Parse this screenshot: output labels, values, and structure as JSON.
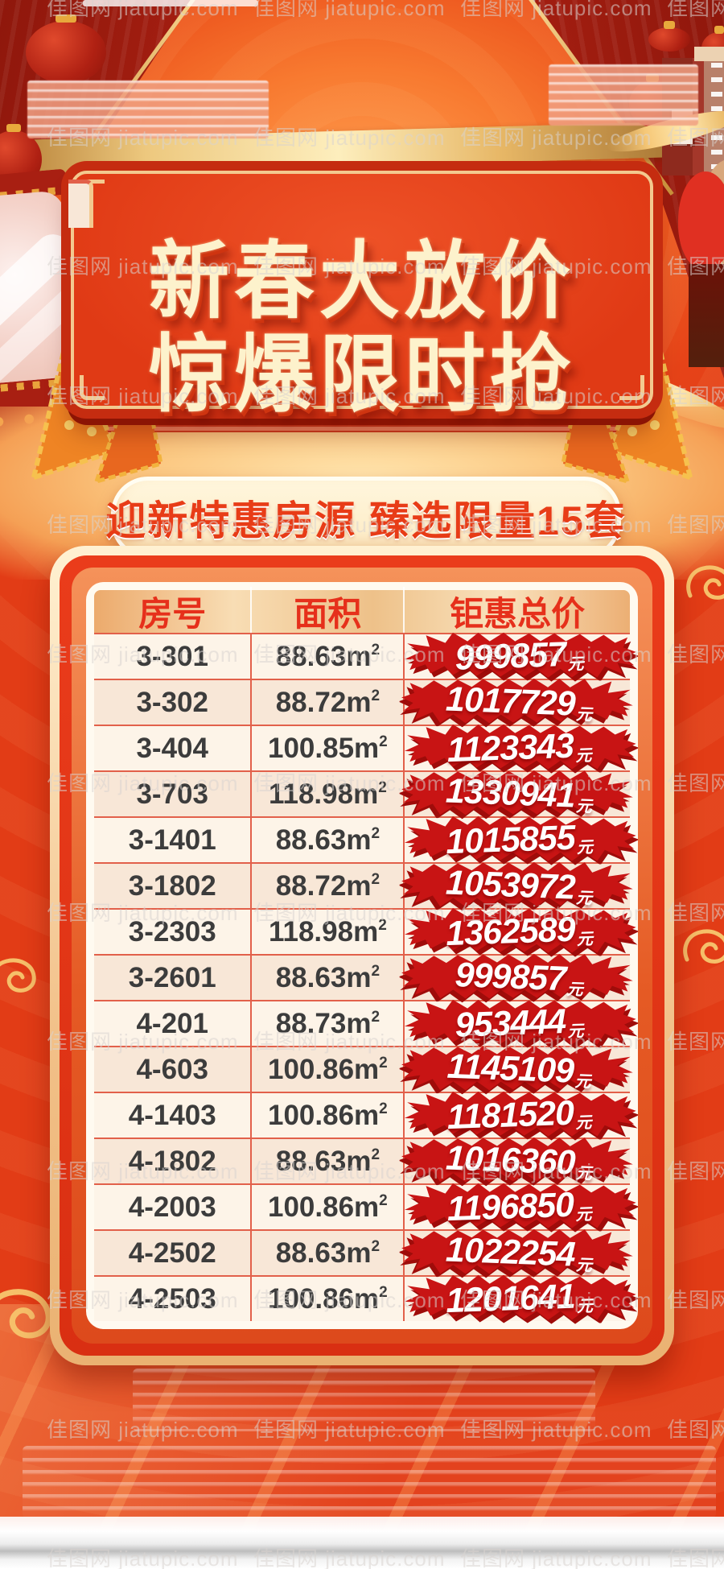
{
  "poster": {
    "title_line1": "新春大放价",
    "title_line2": "惊爆限时抢",
    "subtitle": "迎新特惠房源 臻选限量15套"
  },
  "table": {
    "columns": [
      "房号",
      "面积",
      "钜惠总价"
    ],
    "area_unit_base": "m",
    "area_unit_sup": "2",
    "price_unit": "元",
    "rows": [
      {
        "room": "3-301",
        "area": "88.63",
        "price": "999857"
      },
      {
        "room": "3-302",
        "area": "88.72",
        "price": "1017729"
      },
      {
        "room": "3-404",
        "area": "100.85",
        "price": "1123343"
      },
      {
        "room": "3-703",
        "area": "118.98",
        "price": "1330941"
      },
      {
        "room": "3-1401",
        "area": "88.63",
        "price": "1015855"
      },
      {
        "room": "3-1802",
        "area": "88.72",
        "price": "1053972"
      },
      {
        "room": "3-2303",
        "area": "118.98",
        "price": "1362589"
      },
      {
        "room": "3-2601",
        "area": "88.63",
        "price": "999857"
      },
      {
        "room": "4-201",
        "area": "88.73",
        "price": "953444"
      },
      {
        "room": "4-603",
        "area": "100.86",
        "price": "1145109"
      },
      {
        "room": "4-1403",
        "area": "100.86",
        "price": "1181520"
      },
      {
        "room": "4-1802",
        "area": "88.63",
        "price": "1016360"
      },
      {
        "room": "4-2003",
        "area": "100.86",
        "price": "1196850"
      },
      {
        "room": "4-2502",
        "area": "88.63",
        "price": "1022254"
      },
      {
        "room": "4-2503",
        "area": "100.86",
        "price": "1201641"
      }
    ]
  },
  "watermark": {
    "text": "佳图网 jiatupic.com"
  },
  "colors": {
    "background_red": "#e23c16",
    "panel_red": "#e03a15",
    "badge_red": "#c81414",
    "gold_border": "#f3c98f",
    "cream_text": "#fdf2cc",
    "banner_text_red": "#e83c17",
    "header_text_red": "#e6301b",
    "cell_text": "#3c3c3c"
  }
}
